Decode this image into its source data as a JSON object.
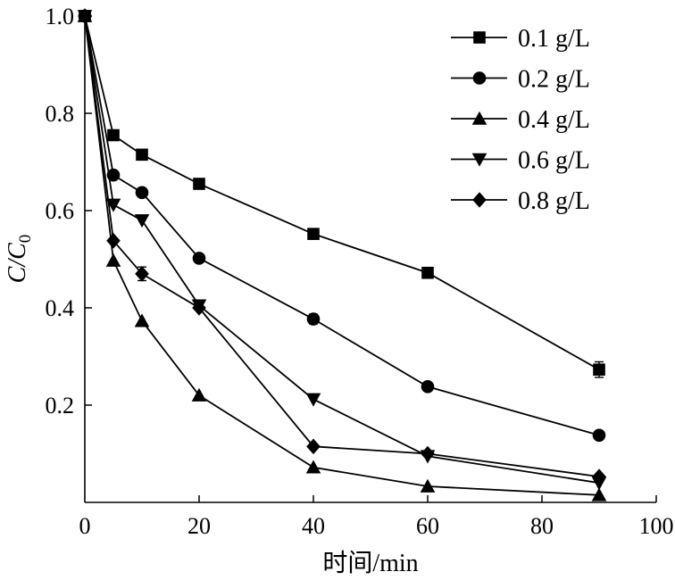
{
  "chart_data": {
    "type": "line",
    "title": "",
    "xlabel": "时间/min",
    "ylabel": "C/C",
    "ylabel_subscript": "0",
    "xlim": [
      0,
      100
    ],
    "ylim": [
      0,
      1.0
    ],
    "x_ticks": [
      0,
      20,
      40,
      60,
      80,
      100
    ],
    "x_tick_labels": [
      "0",
      "20",
      "40",
      "60",
      "80",
      "100"
    ],
    "y_ticks": [
      0.2,
      0.4,
      0.6,
      0.8,
      1.0
    ],
    "y_tick_labels": [
      "0.2",
      "0.4",
      "0.6",
      "0.8",
      "1.0"
    ],
    "grid": false,
    "legend_position": "top-right",
    "x": [
      0,
      5,
      10,
      20,
      40,
      60,
      90
    ],
    "series": [
      {
        "name": "0.1 g/L",
        "marker": "square",
        "values": [
          1.0,
          0.755,
          0.715,
          0.655,
          0.552,
          0.472,
          0.273
        ],
        "errors": [
          0,
          0,
          0,
          0.01,
          0,
          0,
          0.016
        ]
      },
      {
        "name": "0.2 g/L",
        "marker": "circle",
        "values": [
          1.0,
          0.673,
          0.637,
          0.502,
          0.377,
          0.238,
          0.138
        ],
        "errors": [
          0,
          0,
          0,
          0,
          0.01,
          0,
          0
        ]
      },
      {
        "name": "0.4 g/L",
        "marker": "triangle-up",
        "values": [
          1.0,
          0.497,
          0.373,
          0.22,
          0.072,
          0.033,
          0.015
        ],
        "errors": [
          0,
          0,
          0,
          0,
          0,
          0,
          0
        ]
      },
      {
        "name": "0.6 g/L",
        "marker": "triangle-down",
        "values": [
          1.0,
          0.612,
          0.58,
          0.405,
          0.212,
          0.095,
          0.04
        ],
        "errors": [
          0,
          0,
          0,
          0,
          0,
          0,
          0
        ]
      },
      {
        "name": "0.8 g/L",
        "marker": "diamond",
        "values": [
          1.0,
          0.538,
          0.47,
          0.4,
          0.115,
          0.1,
          0.053
        ],
        "errors": [
          0,
          0,
          0.014,
          0,
          0,
          0,
          0
        ]
      }
    ]
  }
}
